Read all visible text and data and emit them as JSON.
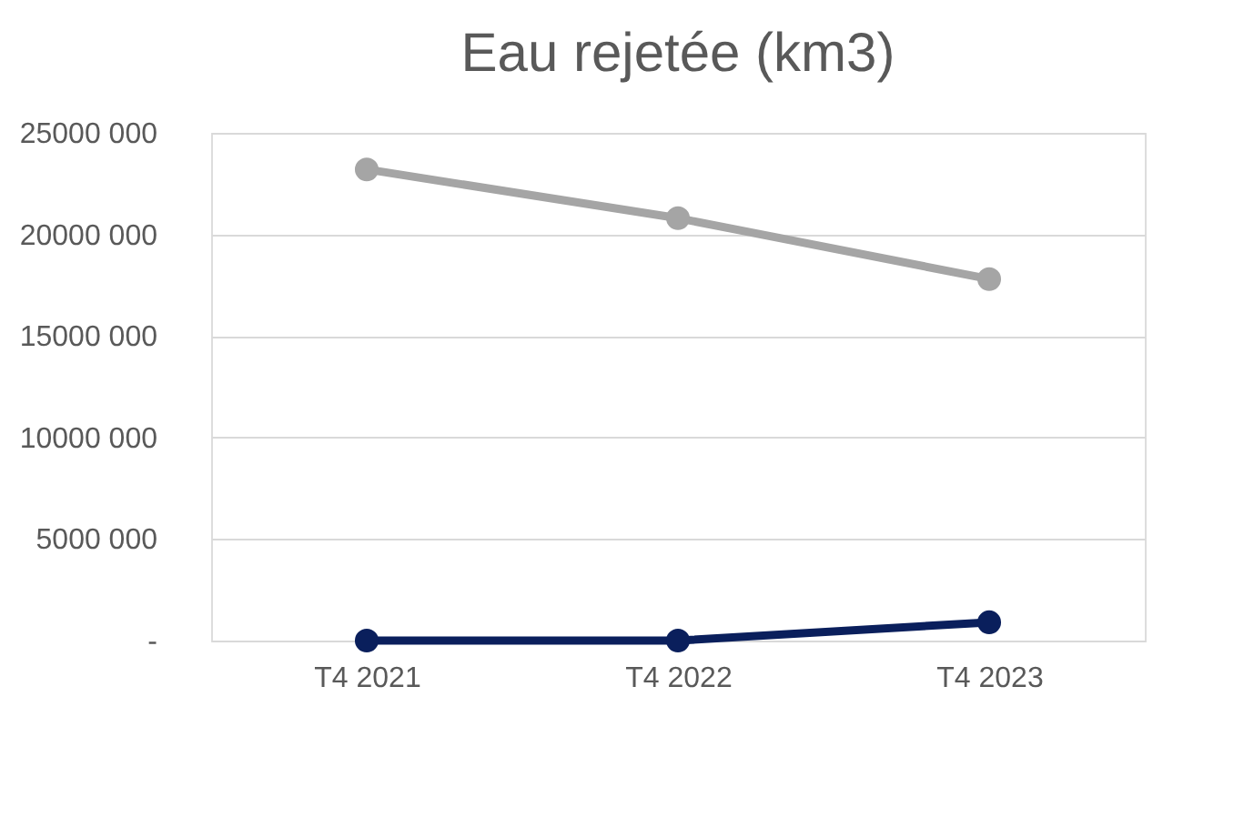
{
  "chart_data": {
    "type": "line",
    "title": "Eau rejetée (km3)",
    "categories": [
      "T4 2021",
      "T4 2022",
      "T4 2023"
    ],
    "series": [
      {
        "color": "#a5a5a5",
        "values": [
          23200000,
          20800000,
          17800000
        ]
      },
      {
        "color": "#0a1f5c",
        "values": [
          0,
          0,
          900000
        ]
      }
    ],
    "ylim": [
      0,
      25000000
    ],
    "yticks": [
      {
        "value": 0,
        "label": "-"
      },
      {
        "value": 5000000,
        "label": "5000 000"
      },
      {
        "value": 10000000,
        "label": "10000 000"
      },
      {
        "value": 15000000,
        "label": "15000 000"
      },
      {
        "value": 20000000,
        "label": "20000 000"
      },
      {
        "value": 25000000,
        "label": "25000 000"
      }
    ],
    "grid": "y",
    "marker": "circle",
    "line_style": "solid"
  }
}
